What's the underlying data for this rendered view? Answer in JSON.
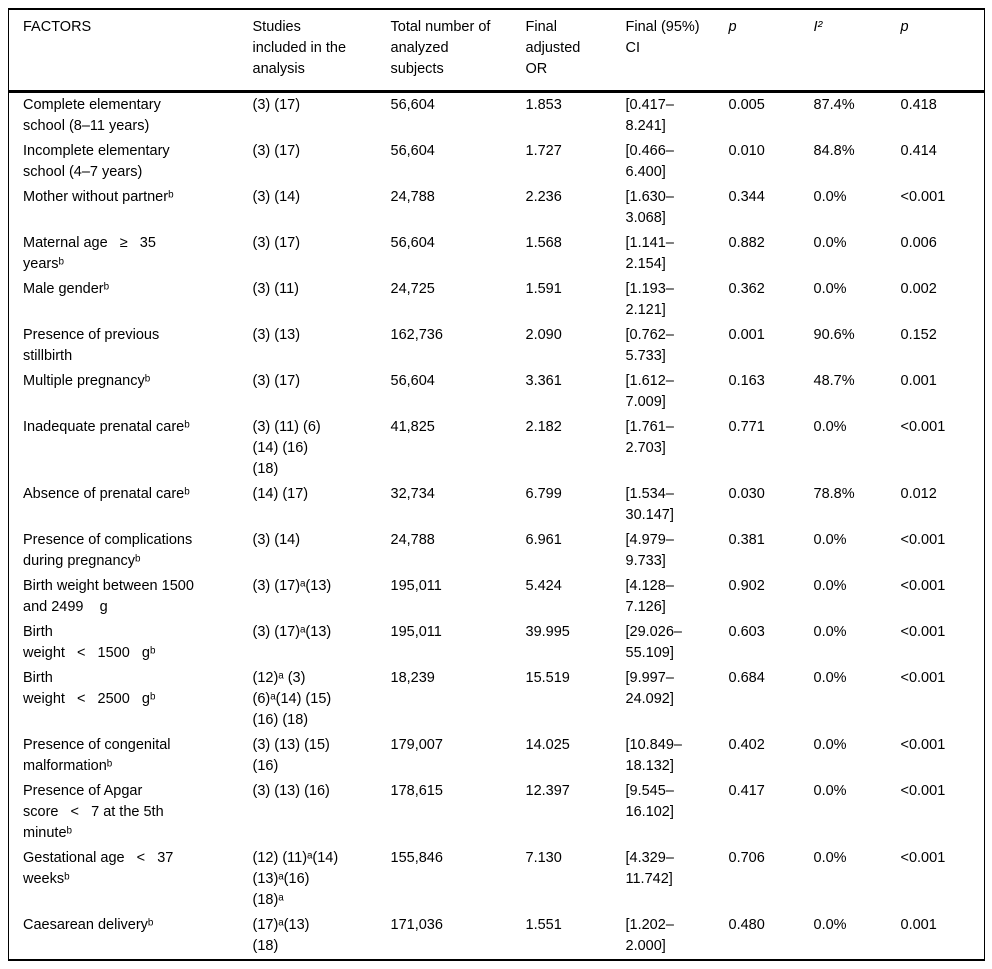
{
  "table": {
    "headers": [
      {
        "key": "factors",
        "label": "FACTORS",
        "italic": false
      },
      {
        "key": "studies",
        "label": "Studies\nincluded in the\nanalysis",
        "italic": false
      },
      {
        "key": "subjects",
        "label": "Total number of\nanalyzed\nsubjects",
        "italic": false
      },
      {
        "key": "adjusted-or",
        "label": "Final\nadjusted\nOR",
        "italic": false
      },
      {
        "key": "ci",
        "label": "Final (95%)\nCI",
        "italic": false
      },
      {
        "key": "p-heterogeneity",
        "label": "p",
        "italic": true
      },
      {
        "key": "i-squared",
        "label": "I²",
        "italic": true
      },
      {
        "key": "p-value",
        "label": "p",
        "italic": true
      }
    ],
    "rows": [
      {
        "factor": "Complete elementary\nschool (8–11 years)",
        "studies": "(3) (17)",
        "subjects": "56,604",
        "or": "1.853",
        "ci": "[0.417–\n8.241]",
        "p_het": "0.005",
        "i2": "87.4%",
        "p": "0.418"
      },
      {
        "factor": "Incomplete elementary\nschool (4–7 years)",
        "studies": "(3) (17)",
        "subjects": "56,604",
        "or": "1.727",
        "ci": "[0.466–\n6.400]",
        "p_het": "0.010",
        "i2": "84.8%",
        "p": "0.414"
      },
      {
        "factor": "Mother without partnerᵇ",
        "studies": "(3) (14)",
        "subjects": "24,788",
        "or": "2.236",
        "ci": "[1.630–\n3.068]",
        "p_het": "0.344",
        "i2": "0.0%",
        "p": "<0.001"
      },
      {
        "factor": "Maternal age   ≥   35\nyearsᵇ",
        "studies": "(3) (17)",
        "subjects": "56,604",
        "or": "1.568",
        "ci": "[1.141–\n2.154]",
        "p_het": "0.882",
        "i2": "0.0%",
        "p": "0.006"
      },
      {
        "factor": "Male genderᵇ",
        "studies": "(3) (11)",
        "subjects": "24,725",
        "or": "1.591",
        "ci": "[1.193–\n2.121]",
        "p_het": "0.362",
        "i2": "0.0%",
        "p": "0.002"
      },
      {
        "factor": "Presence of previous\nstillbirth",
        "studies": "(3) (13)",
        "subjects": "162,736",
        "or": "2.090",
        "ci": "[0.762–\n5.733]",
        "p_het": "0.001",
        "i2": "90.6%",
        "p": "0.152"
      },
      {
        "factor": "Multiple pregnancyᵇ",
        "studies": "(3) (17)",
        "subjects": "56,604",
        "or": "3.361",
        "ci": "[1.612–\n7.009]",
        "p_het": "0.163",
        "i2": "48.7%",
        "p": "0.001"
      },
      {
        "factor": "Inadequate prenatal careᵇ",
        "studies": "(3) (11) (6)\n(14) (16)\n(18)",
        "subjects": "41,825",
        "or": "2.182",
        "ci": "[1.761–\n2.703]",
        "p_het": "0.771",
        "i2": "0.0%",
        "p": "<0.001"
      },
      {
        "factor": "Absence of prenatal careᵇ",
        "studies": "(14) (17)",
        "subjects": "32,734",
        "or": "6.799",
        "ci": "[1.534–\n30.147]",
        "p_het": "0.030",
        "i2": "78.8%",
        "p": "0.012"
      },
      {
        "factor": "Presence of complications\nduring pregnancyᵇ",
        "studies": "(3) (14)",
        "subjects": "24,788",
        "or": "6.961",
        "ci": "[4.979–\n9.733]",
        "p_het": "0.381",
        "i2": "0.0%",
        "p": "<0.001"
      },
      {
        "factor": "Birth weight between 1500\nand 2499    g",
        "studies": "(3) (17)ᵃ(13)",
        "subjects": "195,011",
        "or": "5.424",
        "ci": "[4.128–\n7.126]",
        "p_het": "0.902",
        "i2": "0.0%",
        "p": "<0.001"
      },
      {
        "factor": "Birth\nweight   <   1500   gᵇ",
        "studies": "(3) (17)ᵃ(13)",
        "subjects": "195,011",
        "or": "39.995",
        "ci": "[29.026–\n55.109]",
        "p_het": "0.603",
        "i2": "0.0%",
        "p": "<0.001"
      },
      {
        "factor": "Birth\nweight   <   2500   gᵇ",
        "studies": "(12)ᵃ (3)\n(6)ᵃ(14) (15)\n(16) (18)",
        "subjects": "18,239",
        "or": "15.519",
        "ci": "[9.997–\n24.092]",
        "p_het": "0.684",
        "i2": "0.0%",
        "p": "<0.001"
      },
      {
        "factor": "Presence of congenital\nmalformationᵇ",
        "studies": "(3) (13) (15)\n(16)",
        "subjects": "179,007",
        "or": "14.025",
        "ci": "[10.849–\n18.132]",
        "p_het": "0.402",
        "i2": "0.0%",
        "p": "<0.001"
      },
      {
        "factor": "Presence of Apgar\nscore   <   7 at the 5th\nminuteᵇ",
        "studies": "(3) (13) (16)",
        "subjects": "178,615",
        "or": "12.397",
        "ci": "[9.545–\n16.102]",
        "p_het": "0.417",
        "i2": "0.0%",
        "p": "<0.001"
      },
      {
        "factor": "Gestational age   <   37\nweeksᵇ",
        "studies": "(12) (11)ᵃ(14)\n(13)ᵃ(16)\n(18)ᵃ",
        "subjects": "155,846",
        "or": "7.130",
        "ci": "[4.329–\n11.742]",
        "p_het": "0.706",
        "i2": "0.0%",
        "p": "<0.001"
      },
      {
        "factor": "Caesarean deliveryᵇ",
        "studies": "(17)ᵃ(13)\n(18)",
        "subjects": "171,036",
        "or": "1.551",
        "ci": "[1.202–\n2.000]",
        "p_het": "0.480",
        "i2": "0.0%",
        "p": "0.001"
      }
    ]
  }
}
